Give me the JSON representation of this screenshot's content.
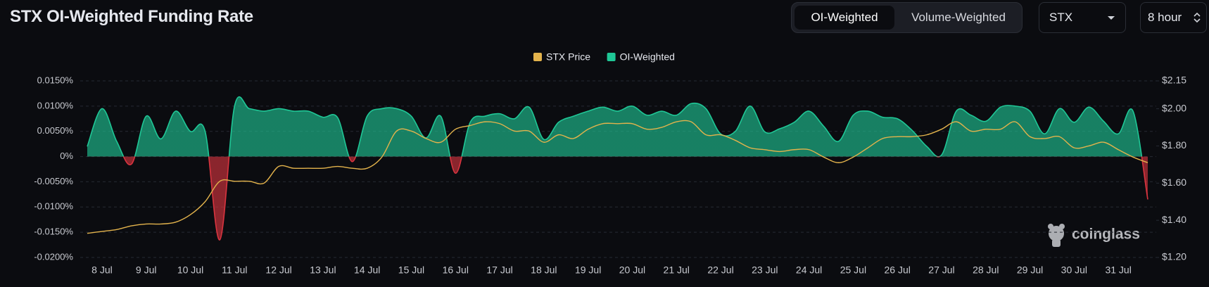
{
  "controls": {
    "weighting": [
      "OI-Weighted",
      "Volume-Weighted"
    ],
    "symbol": "STX",
    "interval": "8 hour"
  },
  "watermark": "coinglass",
  "chart_data": {
    "type": "area-line",
    "title": "STX OI-Weighted Funding Rate",
    "categories": [
      null,
      "8 Jul",
      null,
      null,
      "9 Jul",
      null,
      null,
      "10 Jul",
      null,
      null,
      "11 Jul",
      null,
      null,
      "12 Jul",
      null,
      null,
      "13 Jul",
      null,
      null,
      "14 Jul",
      null,
      null,
      "15 Jul",
      null,
      null,
      "16 Jul",
      null,
      null,
      "17 Jul",
      null,
      null,
      "18 Jul",
      null,
      null,
      "19 Jul",
      null,
      null,
      "20 Jul",
      null,
      null,
      "21 Jul",
      null,
      null,
      "22 Jul",
      null,
      null,
      "23 Jul",
      null,
      null,
      "24 Jul",
      null,
      null,
      "25 Jul",
      null,
      null,
      "26 Jul",
      null,
      null,
      "27 Jul",
      null,
      null,
      "28 Jul",
      null,
      null,
      "29 Jul",
      null,
      null,
      "30 Jul",
      null,
      null,
      "31 Jul",
      null,
      null
    ],
    "series": [
      {
        "name": "STX Price",
        "color": "#e3b34c",
        "axis": "y2",
        "values": [
          1.33,
          1.34,
          1.35,
          1.37,
          1.38,
          1.38,
          1.39,
          1.43,
          1.5,
          1.61,
          1.61,
          1.61,
          1.6,
          1.69,
          1.68,
          1.68,
          1.68,
          1.69,
          1.68,
          1.68,
          1.74,
          1.88,
          1.88,
          1.84,
          1.82,
          1.89,
          1.91,
          1.93,
          1.92,
          1.88,
          1.88,
          1.82,
          1.86,
          1.84,
          1.89,
          1.92,
          1.92,
          1.92,
          1.89,
          1.9,
          1.93,
          1.93,
          1.86,
          1.86,
          1.83,
          1.79,
          1.78,
          1.77,
          1.78,
          1.78,
          1.74,
          1.71,
          1.74,
          1.79,
          1.84,
          1.85,
          1.85,
          1.86,
          1.89,
          1.93,
          1.88,
          1.89,
          1.89,
          1.93,
          1.85,
          1.84,
          1.85,
          1.79,
          1.8,
          1.82,
          1.78,
          1.74,
          1.71
        ]
      },
      {
        "name": "OI-Weighted",
        "color": "#1fc796",
        "negative_color": "#d9343f",
        "values": [
          0.002,
          0.0095,
          0.003,
          -0.0015,
          0.008,
          0.0035,
          0.009,
          0.005,
          0.005,
          -0.0165,
          0.01,
          0.0095,
          0.009,
          0.0095,
          0.009,
          0.009,
          0.0078,
          0.0077,
          -0.001,
          0.008,
          0.0095,
          0.0095,
          0.008,
          0.0037,
          0.008,
          -0.0033,
          0.0068,
          0.008,
          0.0085,
          0.0075,
          0.0098,
          0.0034,
          0.0068,
          0.008,
          0.009,
          0.0098,
          0.009,
          0.01,
          0.0082,
          0.009,
          0.0082,
          0.0105,
          0.0095,
          0.0045,
          0.005,
          0.01,
          0.0049,
          0.0055,
          0.0068,
          0.009,
          0.006,
          0.003,
          0.0082,
          0.009,
          0.0078,
          0.0075,
          0.0052,
          0.002,
          0.0003,
          0.009,
          0.0082,
          0.007,
          0.0098,
          0.01,
          0.009,
          0.0045,
          0.0095,
          0.0068,
          0.0098,
          0.007,
          0.0045,
          0.009,
          -0.0085
        ]
      }
    ],
    "ylim": [
      -0.02,
      0.015
    ],
    "yticks": [
      {
        "value": -0.02,
        "label": "-0.0200%"
      },
      {
        "value": -0.015,
        "label": "-0.0150%"
      },
      {
        "value": -0.01,
        "label": "-0.0100%"
      },
      {
        "value": -0.005,
        "label": "-0.0050%"
      },
      {
        "value": 0,
        "label": "0%"
      },
      {
        "value": 0.005,
        "label": "0.0050%"
      },
      {
        "value": 0.01,
        "label": "0.0100%"
      },
      {
        "value": 0.015,
        "label": "0.0150%"
      }
    ],
    "y2lim": [
      1.2,
      2.15
    ],
    "y2ticks": [
      {
        "value": 1.2,
        "label": "$1.20"
      },
      {
        "value": 1.4,
        "label": "$1.40"
      },
      {
        "value": 1.6,
        "label": "$1.60"
      },
      {
        "value": 1.8,
        "label": "$1.80"
      },
      {
        "value": 2.0,
        "label": "$2.00"
      },
      {
        "value": 2.15,
        "label": "$2.15"
      }
    ],
    "grid": true,
    "legend": "top"
  }
}
